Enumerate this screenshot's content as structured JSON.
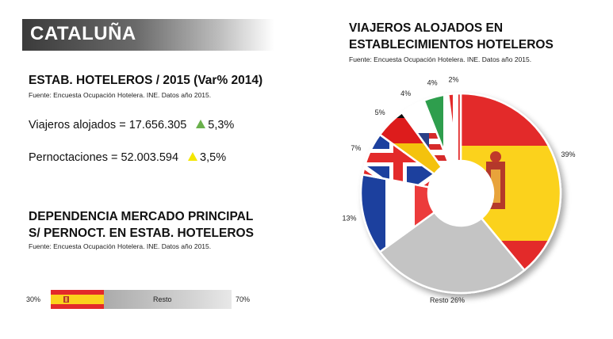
{
  "banner": {
    "title": "CATALUÑA"
  },
  "left": {
    "section1_title": "ESTAB. HOTELEROS / 2015 (Var% 2014)",
    "section1_source": "Fuente: Encuesta Ocupación Hotelera. INE. Datos año 2015.",
    "kpis": [
      {
        "label": "Viajeros alojados = 17.656.305",
        "change": "5,3%",
        "color": "#6ab04c"
      },
      {
        "label": "Pernoctaciones =  52.003.594",
        "change": "3,5%",
        "color": "#f4e600"
      }
    ],
    "section2_title_1": "DEPENDENCIA MERCADO PRINCIPAL",
    "section2_title_2": "S/ PERNOCT. EN ESTAB. HOTELEROS",
    "section2_source": "Fuente: Encuesta Ocupación Hotelera. INE. Datos año 2015.",
    "bar": {
      "left_pct": "30%",
      "rest_label": "Resto",
      "right_pct": "70%",
      "spain_share": 30,
      "rest_share": 70
    }
  },
  "right": {
    "title_1": "VIAJEROS ALOJADOS EN",
    "title_2": "ESTABLECIMIENTOS HOTELEROS",
    "source": "Fuente: Encuesta Ocupación Hotelera. INE. Datos año 2015."
  },
  "chart_data": {
    "type": "pie",
    "title": "VIAJEROS ALOJADOS EN ESTABLECIMIENTOS HOTELEROS",
    "slices": [
      {
        "flag": "spain-flag",
        "value": 39,
        "label": "39%"
      },
      {
        "flag": "resto",
        "value": 26,
        "label": "Resto 26%"
      },
      {
        "flag": "france-flag",
        "value": 13,
        "label": "13%"
      },
      {
        "flag": "uk-flag",
        "value": 7,
        "label": "7%"
      },
      {
        "flag": "germany-flag",
        "value": 5,
        "label": "5%"
      },
      {
        "flag": "usa-flag",
        "value": 4,
        "label": "4%"
      },
      {
        "flag": "italy-flag",
        "value": 4,
        "label": "4%"
      },
      {
        "flag": "switzerland-flag",
        "value": 2,
        "label": "2%"
      }
    ],
    "colors": {
      "resto": "#c4c4c4",
      "spain_red": "#e32a2a",
      "spain_yellow": "#fbd21c"
    }
  }
}
